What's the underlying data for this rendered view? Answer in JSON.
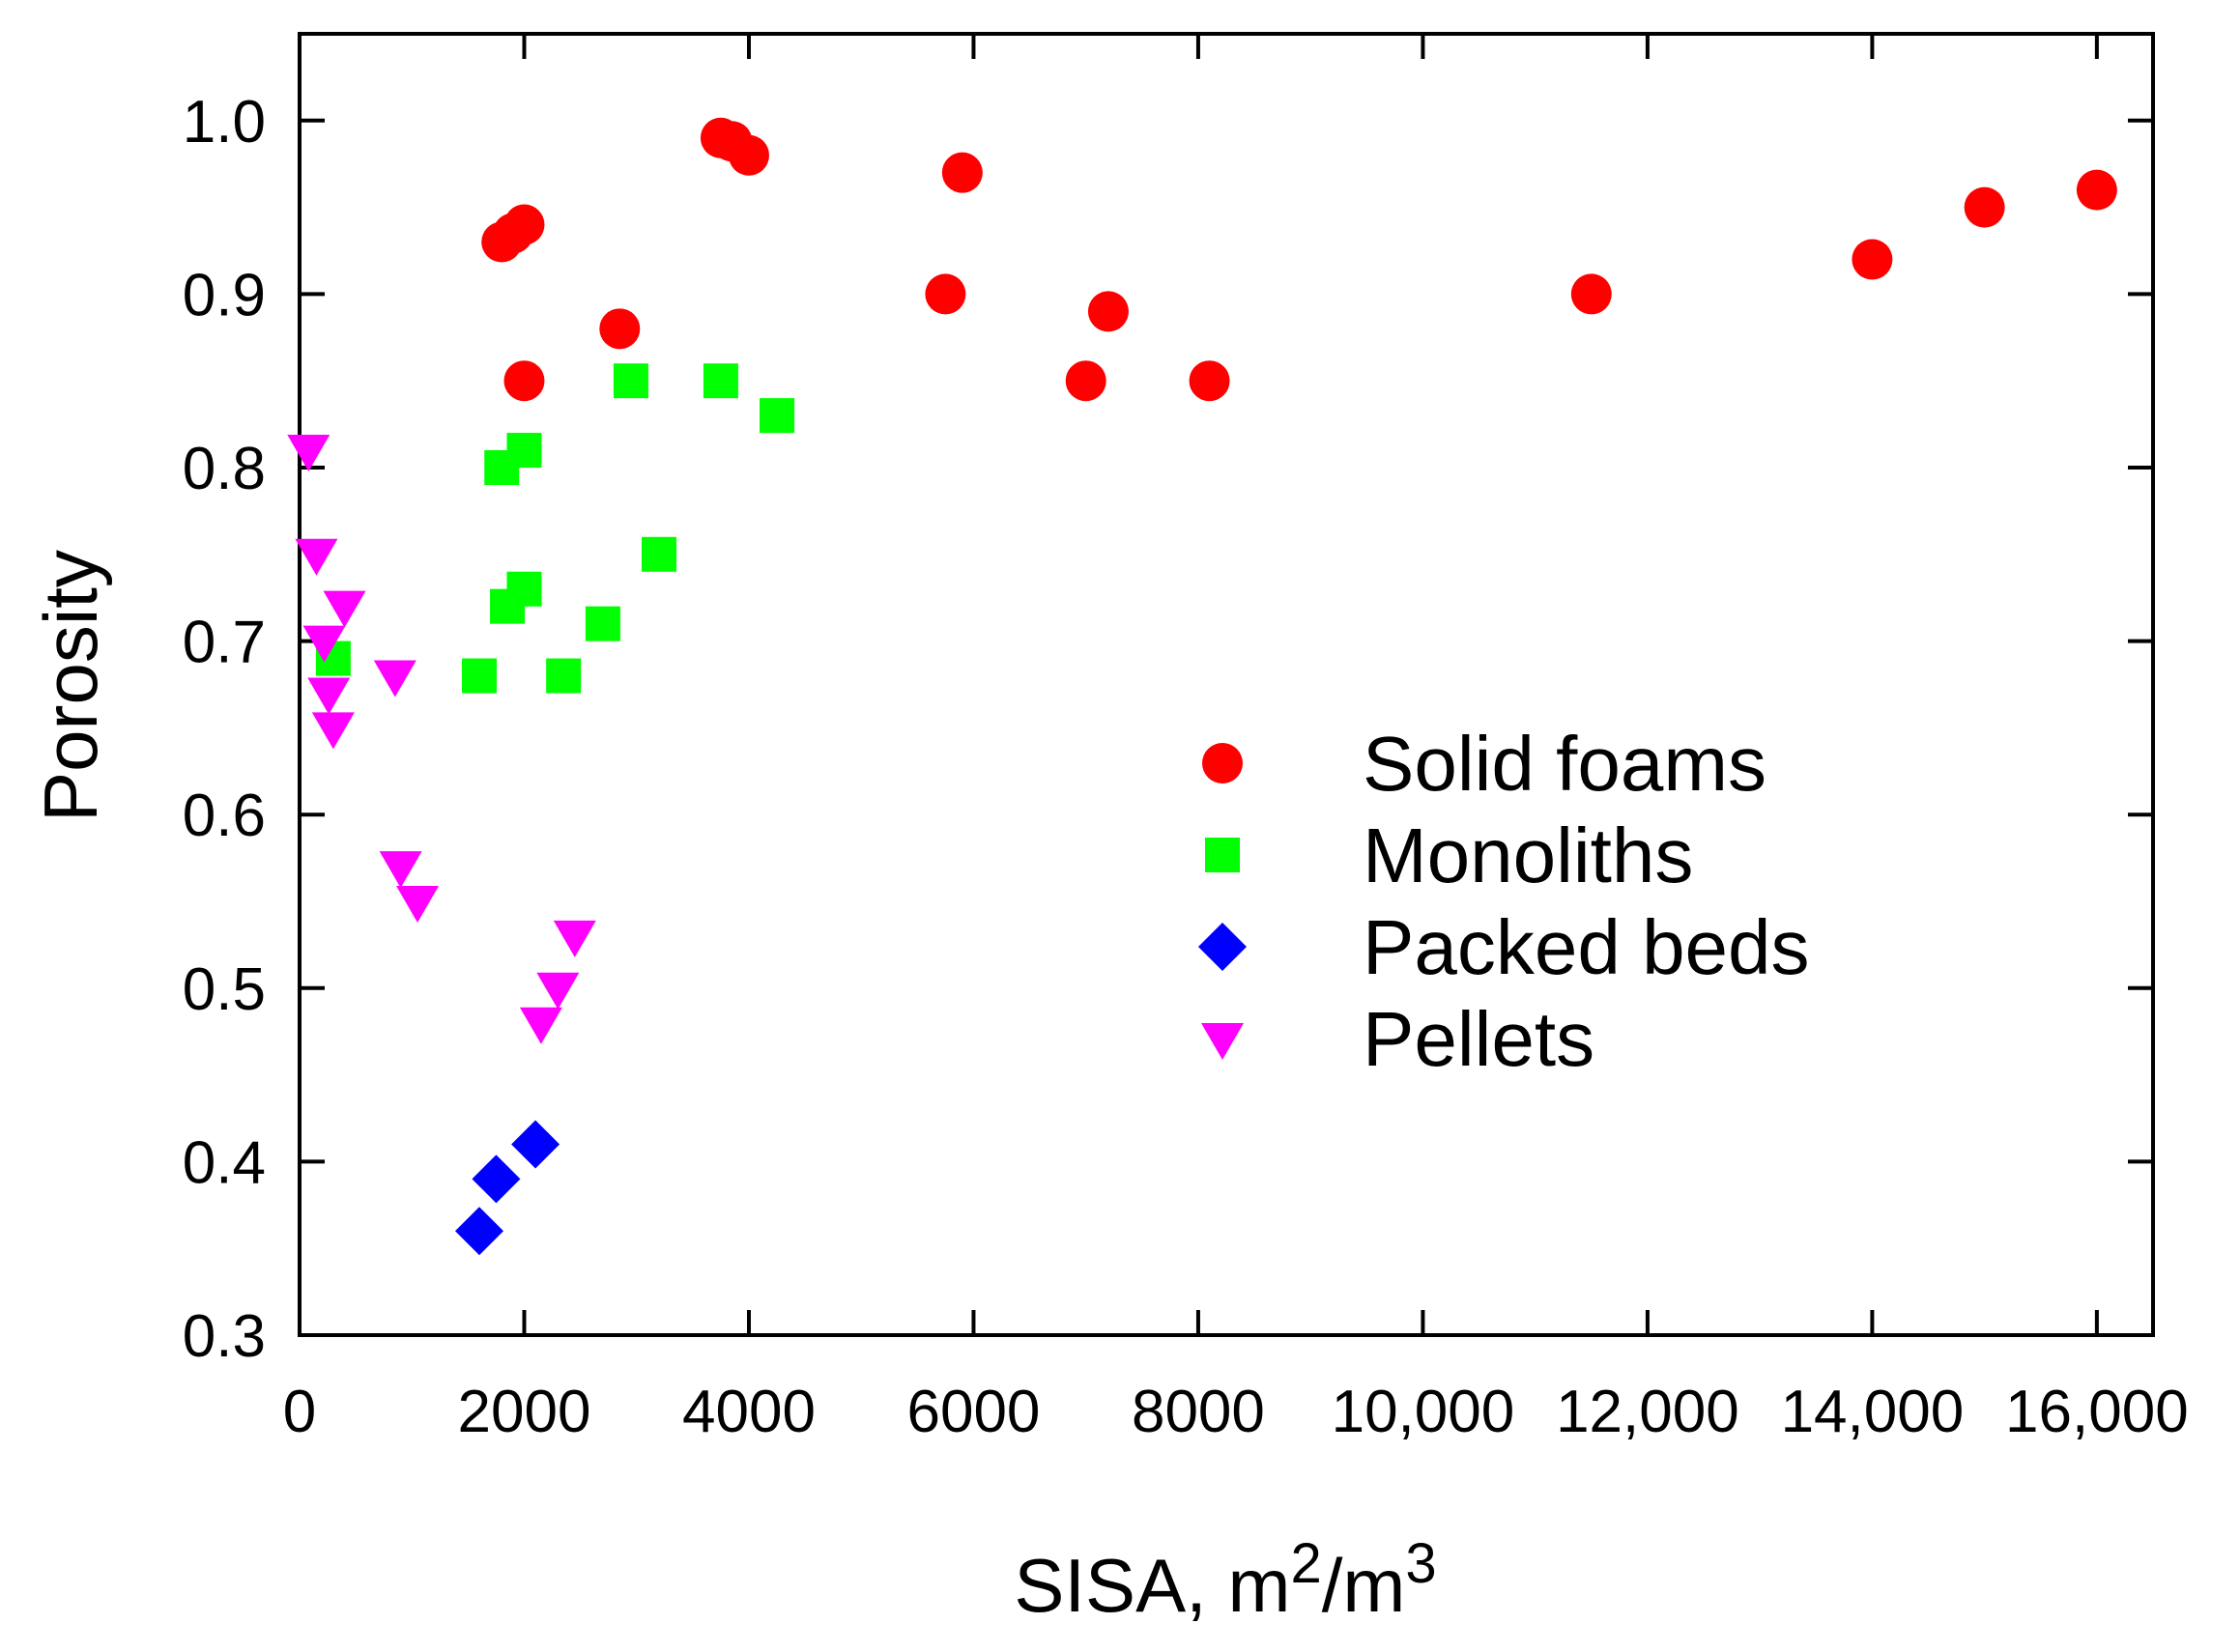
{
  "chart_data": {
    "type": "scatter",
    "title": "",
    "xlabel": {
      "prefix": "SISA, m",
      "sup1": "2",
      "mid": "/m",
      "sup2": "3"
    },
    "ylabel": "Porosity",
    "xlim": [
      0,
      16500
    ],
    "ylim": [
      0.3,
      1.05
    ],
    "xticks": [
      0,
      2000,
      4000,
      6000,
      8000,
      10000,
      12000,
      14000,
      16000
    ],
    "xtick_labels": [
      "0",
      "2000",
      "4000",
      "6000",
      "8000",
      "10,000",
      "12,000",
      "14,000",
      "16,000"
    ],
    "yticks": [
      0.3,
      0.4,
      0.5,
      0.6,
      0.7,
      0.8,
      0.9,
      1.0
    ],
    "ytick_labels": [
      "0.3",
      "0.4",
      "0.5",
      "0.6",
      "0.7",
      "0.8",
      "0.9",
      "1.0"
    ],
    "grid": false,
    "legend_position": "center-right",
    "series": [
      {
        "name": "Solid foams",
        "marker": "circle",
        "color": "#ff0000",
        "points": [
          [
            1800,
            0.93
          ],
          [
            1900,
            0.935
          ],
          [
            2000,
            0.94
          ],
          [
            2000,
            0.85
          ],
          [
            2850,
            0.88
          ],
          [
            3750,
            0.99
          ],
          [
            3850,
            0.988
          ],
          [
            4000,
            0.98
          ],
          [
            5750,
            0.9
          ],
          [
            5900,
            0.97
          ],
          [
            7000,
            0.85
          ],
          [
            7200,
            0.89
          ],
          [
            8100,
            0.85
          ],
          [
            11500,
            0.9
          ],
          [
            14000,
            0.92
          ],
          [
            15000,
            0.95
          ],
          [
            16000,
            0.96
          ]
        ]
      },
      {
        "name": "Monoliths",
        "marker": "square",
        "color": "#00ff00",
        "points": [
          [
            300,
            0.69
          ],
          [
            1600,
            0.68
          ],
          [
            1800,
            0.8
          ],
          [
            2000,
            0.81
          ],
          [
            1850,
            0.72
          ],
          [
            2000,
            0.73
          ],
          [
            2350,
            0.68
          ],
          [
            2700,
            0.71
          ],
          [
            2950,
            0.85
          ],
          [
            3200,
            0.75
          ],
          [
            3750,
            0.85
          ],
          [
            4250,
            0.83
          ]
        ]
      },
      {
        "name": "Packed beds",
        "marker": "diamond",
        "color": "#0000ff",
        "points": [
          [
            1600,
            0.36
          ],
          [
            1750,
            0.39
          ],
          [
            2100,
            0.41
          ]
        ]
      },
      {
        "name": "Pellets",
        "marker": "triangle-down",
        "color": "#ff00ff",
        "points": [
          [
            80,
            0.81
          ],
          [
            150,
            0.75
          ],
          [
            220,
            0.7
          ],
          [
            260,
            0.67
          ],
          [
            300,
            0.65
          ],
          [
            400,
            0.72
          ],
          [
            850,
            0.68
          ],
          [
            900,
            0.57
          ],
          [
            1050,
            0.55
          ],
          [
            2150,
            0.48
          ],
          [
            2300,
            0.5
          ],
          [
            2450,
            0.53
          ]
        ]
      }
    ]
  }
}
